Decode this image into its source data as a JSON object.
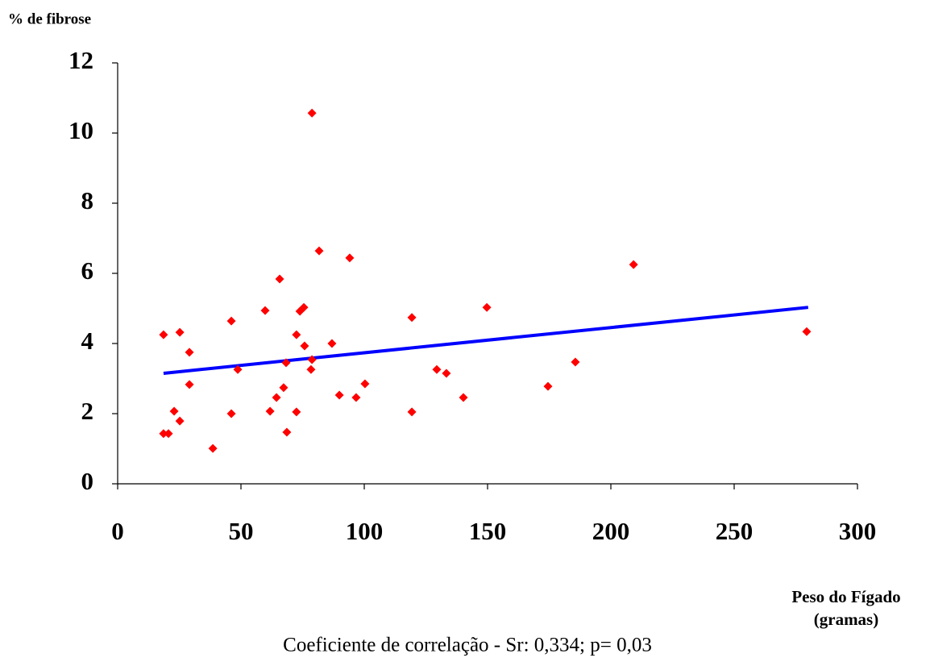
{
  "chart_data": {
    "type": "scatter",
    "ylabel": "% de fibrose",
    "xlabel": [
      "Peso do Fígado",
      "(gramas)"
    ],
    "footnote": "Coeficiente de correlação - Sr: 0,334; p= 0,03",
    "xlim": [
      0,
      300
    ],
    "xticks": [
      0,
      50,
      100,
      150,
      200,
      250,
      300
    ],
    "ylim": [
      0,
      12
    ],
    "yticks": [
      0,
      2,
      4,
      6,
      8,
      10,
      12
    ],
    "grid": false,
    "series": [
      {
        "color": "#ff0000",
        "x": [
          18.6,
          18.6,
          20.6,
          22.9,
          25.2,
          25.2,
          29.1,
          29.1,
          38.6,
          46.1,
          46.1,
          48.7,
          59.8,
          61.8,
          64.4,
          65.7,
          67.3,
          68.3,
          68.6,
          72.5,
          72.5,
          73.9,
          75.5,
          75.8,
          78.4,
          78.8,
          78.8,
          81.7,
          86.9,
          89.9,
          94.1,
          96.7,
          100.3,
          119.3,
          119.3,
          129.4,
          133.3,
          140.2,
          149.7,
          174.5,
          185.6,
          209.2,
          279.4
        ],
        "values": [
          4.25,
          1.43,
          1.43,
          2.07,
          4.32,
          1.79,
          3.75,
          2.83,
          1.01,
          4.64,
          2.0,
          3.26,
          4.94,
          2.07,
          2.46,
          5.84,
          2.74,
          3.45,
          1.47,
          4.25,
          2.05,
          4.92,
          5.03,
          3.93,
          3.26,
          3.54,
          10.57,
          6.64,
          4.0,
          2.53,
          6.44,
          2.46,
          2.85,
          4.74,
          2.05,
          3.26,
          3.15,
          2.46,
          5.03,
          2.78,
          3.47,
          6.25,
          4.34
        ]
      }
    ],
    "trendline": {
      "color": "#0000ff",
      "x": [
        18.6,
        280
      ],
      "values": [
        3.15,
        5.03
      ]
    }
  }
}
